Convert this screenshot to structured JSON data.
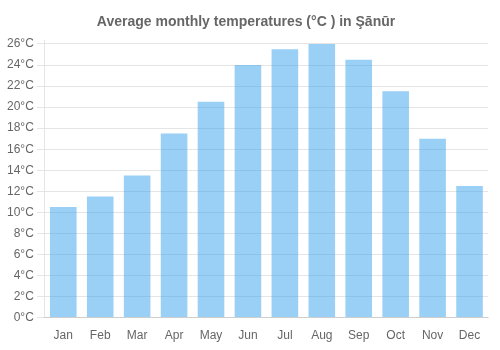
{
  "chart_data": {
    "type": "bar",
    "title": "Average monthly temperatures (°C ) in Şānūr",
    "categories": [
      "Jan",
      "Feb",
      "Mar",
      "Apr",
      "May",
      "Jun",
      "Jul",
      "Aug",
      "Sep",
      "Oct",
      "Nov",
      "Dec"
    ],
    "values": [
      10.5,
      11.5,
      13.5,
      17.5,
      20.5,
      24.0,
      25.5,
      26.0,
      24.5,
      21.5,
      17.0,
      12.5
    ],
    "ylim": [
      0,
      26.3
    ],
    "yticks": [
      {
        "value": 0,
        "label": "0°C"
      },
      {
        "value": 2,
        "label": "2°C"
      },
      {
        "value": 4,
        "label": "4°C"
      },
      {
        "value": 6,
        "label": "6°C"
      },
      {
        "value": 8,
        "label": "8°C"
      },
      {
        "value": 10,
        "label": "10°C"
      },
      {
        "value": 12,
        "label": "12°C"
      },
      {
        "value": 14,
        "label": "14°C"
      },
      {
        "value": 16,
        "label": "16°C"
      },
      {
        "value": 18,
        "label": "18°C"
      },
      {
        "value": 20,
        "label": "20°C"
      },
      {
        "value": 22,
        "label": "22°C"
      },
      {
        "value": 24,
        "label": "24°C"
      },
      {
        "value": 26,
        "label": "26°C"
      }
    ],
    "grid": true
  }
}
